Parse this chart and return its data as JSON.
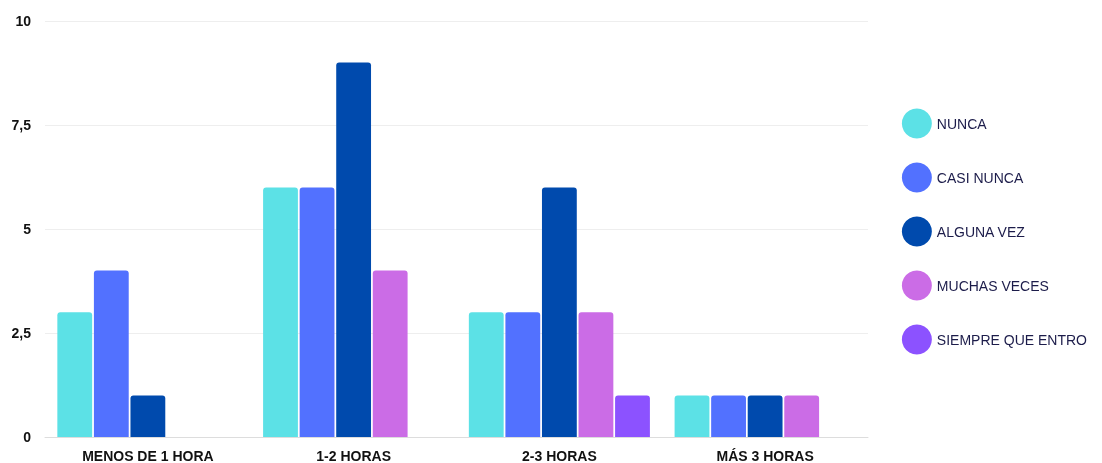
{
  "chart_data": {
    "type": "bar",
    "categories": [
      "MENOS DE 1 HORA",
      "1-2 HORAS",
      "2-3 HORAS",
      "MÁS 3 HORAS"
    ],
    "series": [
      {
        "name": "NUNCA",
        "color": "#5ce1e6",
        "values": [
          3,
          6,
          3,
          1
        ]
      },
      {
        "name": "CASI NUNCA",
        "color": "#5271ff",
        "values": [
          4,
          6,
          3,
          1
        ]
      },
      {
        "name": "ALGUNA VEZ",
        "color": "#004aad",
        "values": [
          1,
          9,
          6,
          1
        ]
      },
      {
        "name": "MUCHAS VECES",
        "color": "#cb6ce6",
        "values": [
          0,
          4,
          3,
          1
        ]
      },
      {
        "name": "SIEMPRE QUE ENTRO",
        "color": "#8c52ff",
        "values": [
          0,
          0,
          1,
          0
        ]
      }
    ],
    "ylim": [
      0,
      10
    ],
    "yticks": [
      0,
      {
        "value": 2.5,
        "label": "2,5"
      },
      5,
      {
        "value": 7.5,
        "label": "7,5"
      },
      10
    ],
    "grid": "y",
    "legend": "right"
  }
}
